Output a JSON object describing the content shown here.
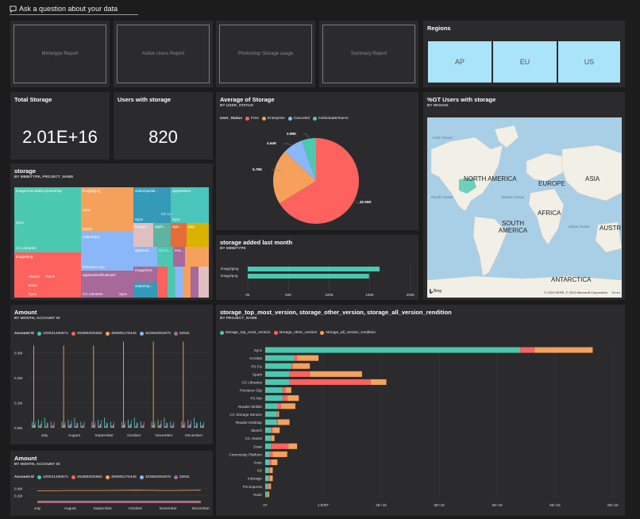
{
  "qa": {
    "icon": "speech-bubble-icon",
    "label": "Ask a question about your data"
  },
  "reports": [
    "Mimetype Report",
    "Active Users Report",
    "Photoshop Storage usage",
    "Summary Report"
  ],
  "regions": {
    "title": "Regions",
    "items": [
      "AP",
      "EU",
      "US"
    ]
  },
  "total_storage": {
    "title": "Total Storage",
    "value": "2.01E+16"
  },
  "users_with_storage": {
    "title": "Users with storage",
    "value": "820"
  },
  "avg_storage": {
    "title": "Average of Storage",
    "subtitle": "BY USER_STATUS",
    "legend_title": "User_Status",
    "legend": [
      {
        "name": "Free",
        "color": "#fd625e"
      },
      {
        "name": "Enterprise",
        "color": "#f5a15c"
      },
      {
        "name": "Canceled",
        "color": "#8ab7f7"
      },
      {
        "name": "Individual&Teams",
        "color": "#4bc8b0"
      }
    ],
    "labels": [
      "32.56K",
      "5.79K",
      "4.54K",
      "2.89K"
    ]
  },
  "gt_users": {
    "title": "%GT Users with storage",
    "subtitle": "BY REGION",
    "labels": {
      "north_america": "NORTH AMERICA",
      "europe": "EUROPE",
      "asia": "ASIA",
      "africa": "AFRICA",
      "south_america": "SOUTH AMERICA",
      "austr": "AUSTR",
      "antarctica": "ANTARCTICA",
      "arctic": "Arctic Ocean",
      "pacific": "Pacific Ocean",
      "atlantic": "Atlantic Ocean",
      "indian": "Indian Ocean",
      "bing": "Bing",
      "copyright": "© 2019 HERE, © 2019 Microsoft Corporation",
      "terms": "Terms"
    }
  },
  "storage_treemap": {
    "title": "storage",
    "subtitle": "BY MIMETYPE, PROJECT_NAME",
    "labels": {
      "a": "image/vnd.adobe.photoshop",
      "b": "Sync",
      "c": "CC Libraries",
      "d": "image/png",
      "e": "Sketch",
      "f": "PS Fi",
      "g": "Draw",
      "h": "Sync",
      "i": "image/jpeg",
      "j": "Sync",
      "k": "Spark",
      "l": "video/mp4",
      "m": "Premiere Clip",
      "n": "application/illustrator",
      "o": "CC Libraries",
      "p": "Sync",
      "q": "video/quickti...",
      "r": "Sync",
      "s": "CC Li...",
      "t": "image/...",
      "u": "appli...",
      "v": "CC Li...",
      "w": "applicati...",
      "x": "image/heic",
      "y": "video/mp...",
      "z": "application/...",
      "aa": "Sync",
      "ab": "app...",
      "ac": "app...",
      "ad": "ima..."
    }
  },
  "storage_added": {
    "title": "storage added last month",
    "subtitle": "BY MIMETYPE",
    "ticks": [
      "0K",
      "50K",
      "100K",
      "150K",
      "200K"
    ]
  },
  "amount1": {
    "title": "Amount",
    "subtitle": "BY MONTH, ACCOUNT ID",
    "legend_title": "Account Id",
    "legend": [
      "100031465874",
      "253580025662",
      "309505178445",
      "323563004675",
      "33911"
    ],
    "yticks": [
      "0.3M",
      "0.2M",
      "0.1M",
      "0.0M"
    ]
  },
  "amount2": {
    "title": "Amount",
    "subtitle": "BY MONTH, ACCOUNT ID",
    "legend_title": "Account Id",
    "legend": [
      "100031465874",
      "253580025662",
      "309505178445",
      "323563004675",
      "33911"
    ],
    "yticks": [
      "0.4M",
      "0.2M"
    ]
  },
  "storage_versions": {
    "title": "storage_top_most_version, storage_other_version, storage_all_version_rendition",
    "subtitle": "BY PROJECT_NAME",
    "legend": [
      {
        "name": "storage_top_most_version",
        "color": "#4bc8b0"
      },
      {
        "name": "storage_other_version",
        "color": "#fd625e"
      },
      {
        "name": "storage_all_version_rendition",
        "color": "#f5a15c"
      }
    ]
  },
  "chart_data": [
    {
      "type": "bar",
      "title": "storage added last month",
      "categories": [
        "image/jpeg",
        "image/png"
      ],
      "values": [
        162000,
        149000
      ],
      "xlim": [
        0,
        200000
      ],
      "xticks": [
        "0K",
        "50K",
        "100K",
        "150K",
        "200K"
      ]
    },
    {
      "type": "bar",
      "title": "Amount",
      "categories": [
        "July",
        "August",
        "September",
        "October",
        "November",
        "December"
      ],
      "ylim": [
        0,
        0.35
      ],
      "series": [
        {
          "name": "100031465874",
          "color": "#4bc8b0",
          "values": [
            0.04,
            0.04,
            0.04,
            0.04,
            0.04,
            0.04
          ]
        },
        {
          "name": "253580025662",
          "color": "#fd625e",
          "values": [
            0.01,
            0.01,
            0.01,
            0.01,
            0.01,
            0.01
          ]
        },
        {
          "name": "309505178445",
          "color": "#f5a15c",
          "values": [
            0.33,
            0.33,
            0.33,
            0.345,
            0.345,
            0.345
          ]
        },
        {
          "name": "323563004675",
          "color": "#8ab7f7",
          "values": [
            0.02,
            0.02,
            0.02,
            0.02,
            0.02,
            0.02
          ]
        },
        {
          "name": "33911",
          "color": "#a66999",
          "values": [
            0.03,
            0.03,
            0.03,
            0.03,
            0.03,
            0.03
          ]
        }
      ]
    },
    {
      "type": "line",
      "title": "Amount",
      "categories": [
        "July",
        "August",
        "September",
        "October",
        "November",
        "December"
      ],
      "ylim": [
        0,
        0.45
      ],
      "series": [
        {
          "name": "100031465874",
          "color": "#4bc8b0",
          "values": [
            0.02,
            0.02,
            0.02,
            0.02,
            0.02,
            0.02
          ]
        },
        {
          "name": "253580025662",
          "color": "#fd625e",
          "values": [
            0.01,
            0.01,
            0.01,
            0.01,
            0.01,
            0.01
          ]
        },
        {
          "name": "309505178445",
          "color": "#f5a15c",
          "values": [
            0.33,
            0.34,
            0.34,
            0.35,
            0.34,
            0.35
          ]
        },
        {
          "name": "323563004675",
          "color": "#8ab7f7",
          "values": [
            0.05,
            0.05,
            0.05,
            0.05,
            0.05,
            0.05
          ]
        },
        {
          "name": "33911",
          "color": "#a66999",
          "values": [
            0.03,
            0.03,
            0.03,
            0.03,
            0.03,
            0.03
          ]
        }
      ]
    },
    {
      "type": "bar",
      "title": "storage_top_most_version, storage_other_version, storage_all_version_rendition",
      "categories": [
        "Sync",
        "Acrobat",
        "PS Fix",
        "Spark",
        "CC Libraries",
        "Premiere Clip",
        "PS Mix",
        "Reader Mobile",
        "CC Storage Service",
        "Reader Desktop",
        "Sketch",
        "CC Assets",
        "Draw",
        "Community Platform",
        "Scan",
        "XD",
        "InDesign",
        "PS Express",
        "Rush"
      ],
      "xlim": [
        0,
        6000000000000000.0
      ],
      "xticks": [
        "0T",
        "1,000T",
        "2E+15",
        "3E+15",
        "4E+15",
        "5E+15",
        "6E+15"
      ],
      "series": [
        {
          "name": "storage_top_most_version",
          "values": [
            4400000000000000.0,
            500000000000000.0,
            450000000000000.0,
            420000000000000.0,
            420000000000000.0,
            300000000000000.0,
            300000000000000.0,
            220000000000000.0,
            200000000000000.0,
            200000000000000.0,
            100000000000000.0,
            100000000000000.0,
            100000000000000.0,
            80000000000000.0,
            80000000000000.0,
            60000000000000.0,
            60000000000000.0,
            50000000000000.0,
            40000000000000.0
          ]
        },
        {
          "name": "storage_other_version",
          "values": [
            250000000000000.0,
            50000000000000.0,
            20000000000000.0,
            350000000000000.0,
            1400000000000000.0,
            50000000000000.0,
            80000000000000.0,
            50000000000000.0,
            20000000000000.0,
            20000000000000.0,
            30000000000000.0,
            10000000000000.0,
            300000000000000.0,
            50000000000000.0,
            30000000000000.0,
            20000000000000.0,
            20000000000000.0,
            20000000000000.0,
            10000000000000.0
          ]
        },
        {
          "name": "storage_all_version_rendition",
          "values": [
            1000000000000000.0,
            370000000000000.0,
            300000000000000.0,
            900000000000000.0,
            270000000000000.0,
            100000000000000.0,
            200000000000000.0,
            250000000000000.0,
            20000000000000.0,
            200000000000000.0,
            120000000000000.0,
            50000000000000.0,
            150000000000000.0,
            250000000000000.0,
            100000000000000.0,
            50000000000000.0,
            50000000000000.0,
            30000000000000.0,
            20000000000000.0
          ]
        }
      ]
    }
  ]
}
